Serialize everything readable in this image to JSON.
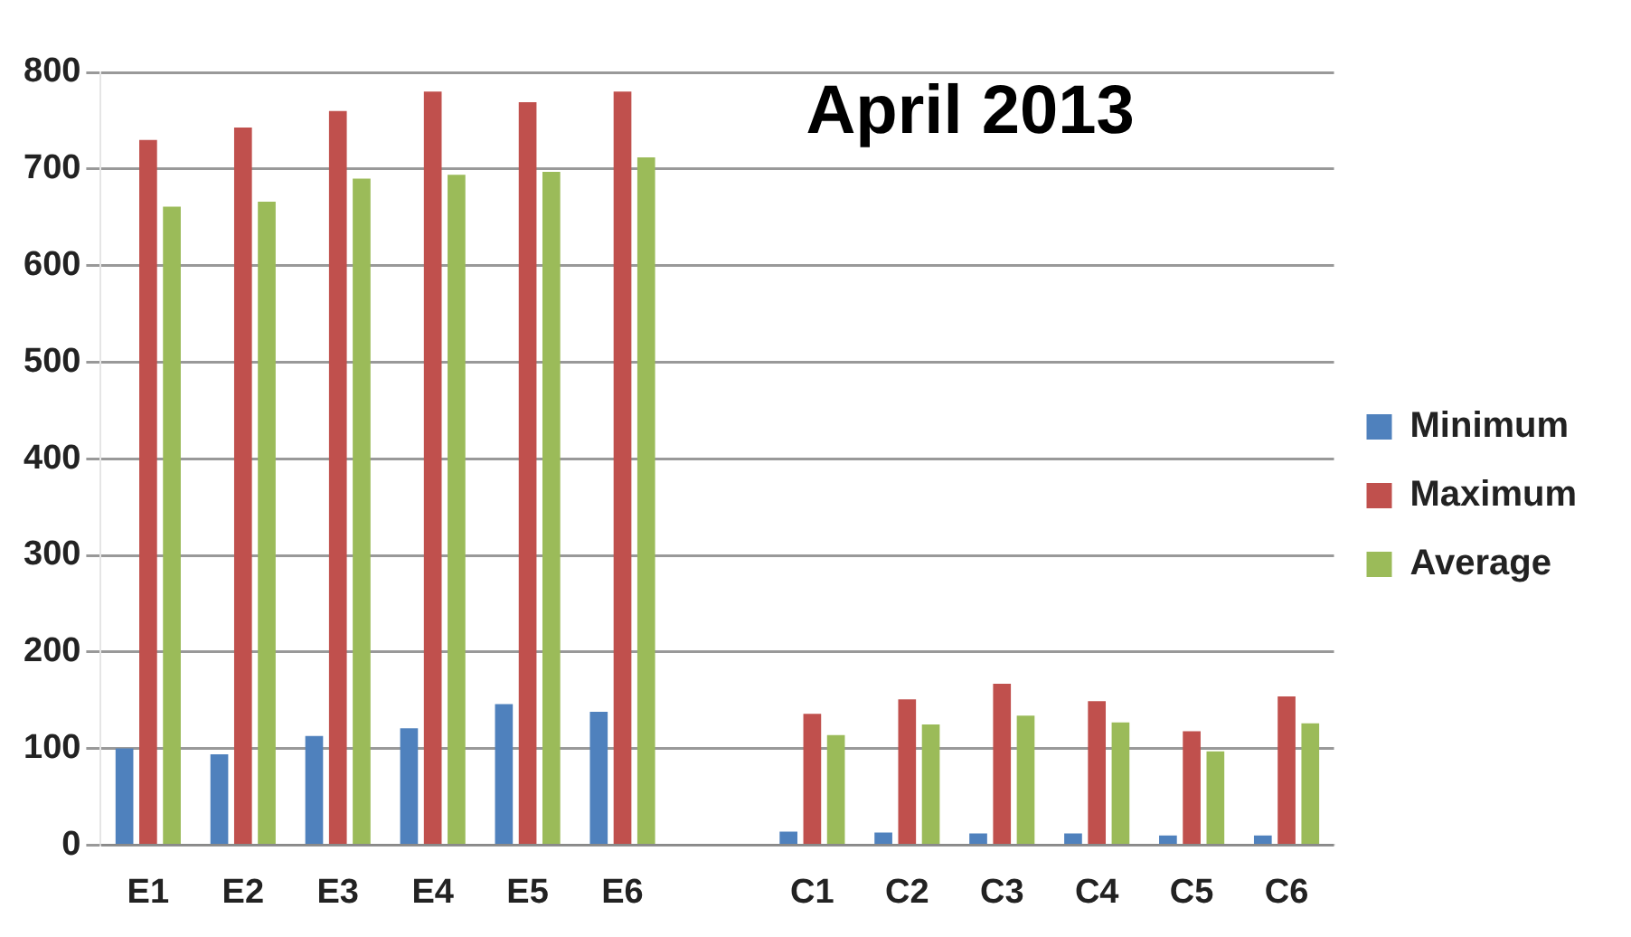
{
  "chart_data": {
    "type": "bar",
    "title": "April 2013",
    "categories": [
      "E1",
      "E2",
      "E3",
      "E4",
      "E5",
      "E6",
      null,
      "C1",
      "C2",
      "C3",
      "C4",
      "C5",
      "C6"
    ],
    "series": [
      {
        "name": "Minimum",
        "color": "#4f81bd",
        "values": [
          100,
          94,
          113,
          121,
          146,
          138,
          null,
          14,
          13,
          12,
          12,
          10,
          10
        ]
      },
      {
        "name": "Maximum",
        "color": "#c0504d",
        "values": [
          730,
          743,
          760,
          780,
          769,
          780,
          null,
          136,
          151,
          167,
          149,
          118,
          154
        ]
      },
      {
        "name": "Average",
        "color": "#9bbb59",
        "values": [
          661,
          666,
          690,
          694,
          697,
          712,
          null,
          114,
          125,
          134,
          127,
          97,
          126
        ]
      }
    ],
    "ylim": [
      0,
      800
    ],
    "yticks": [
      0,
      100,
      200,
      300,
      400,
      500,
      600,
      700,
      800
    ],
    "grid": "y",
    "legend": "right"
  }
}
